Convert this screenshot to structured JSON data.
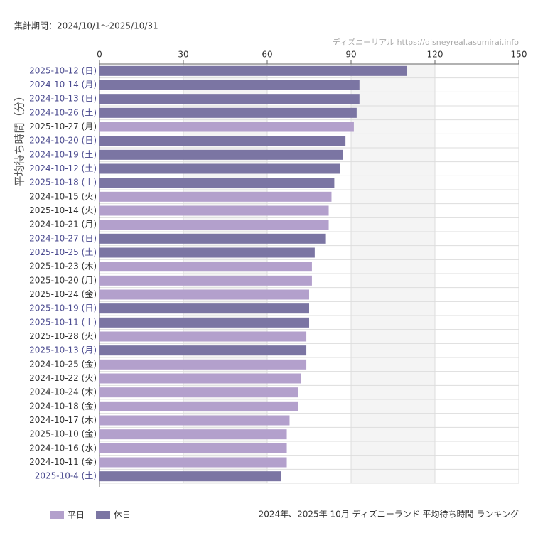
{
  "period": "集計期間：2024/10/1〜2025/10/31",
  "credit": "ディズニーリアル https://disneyreal.asumirai.info",
  "chart_data": {
    "type": "barh",
    "title": "2024年、2025年 10月 ディズニーランド 平均待ち時間 ランキング",
    "y_label": "平均待ち時間（分）",
    "categories": [
      "2025-10-12 (日)",
      "2024-10-14 (月)",
      "2024-10-13 (日)",
      "2024-10-26 (土)",
      "2025-10-27 (月)",
      "2024-10-20 (日)",
      "2024-10-19 (土)",
      "2024-10-12 (土)",
      "2025-10-18 (土)",
      "2024-10-15 (火)",
      "2025-10-14 (火)",
      "2024-10-21 (月)",
      "2024-10-27 (日)",
      "2025-10-25 (土)",
      "2025-10-23 (木)",
      "2025-10-20 (月)",
      "2025-10-24 (金)",
      "2025-10-19 (日)",
      "2025-10-11 (土)",
      "2025-10-28 (火)",
      "2025-10-13 (月)",
      "2024-10-25 (金)",
      "2024-10-22 (火)",
      "2024-10-24 (木)",
      "2024-10-18 (金)",
      "2024-10-17 (木)",
      "2025-10-10 (金)",
      "2024-10-16 (水)",
      "2024-10-11 (金)",
      "2025-10-4 (土)"
    ],
    "series": [
      {
        "name": "平日",
        "color": "#b3a0cc",
        "label_color": "#333333",
        "values": [
          null,
          null,
          null,
          null,
          91,
          null,
          null,
          null,
          null,
          83,
          82,
          82,
          null,
          null,
          76,
          76,
          75,
          null,
          null,
          74,
          null,
          74,
          72,
          71,
          71,
          68,
          67,
          67,
          67,
          null
        ]
      },
      {
        "name": "休日",
        "color": "#7b75a3",
        "label_color": "#4a4a8f",
        "values": [
          110,
          93,
          93,
          92,
          null,
          88,
          87,
          86,
          84,
          null,
          null,
          null,
          81,
          77,
          null,
          null,
          null,
          75,
          75,
          null,
          74,
          null,
          null,
          null,
          null,
          null,
          null,
          null,
          null,
          65
        ]
      }
    ],
    "xlim": [
      0,
      150
    ],
    "xticks": [
      0,
      30,
      60,
      90,
      120,
      150
    ],
    "grid": true
  }
}
